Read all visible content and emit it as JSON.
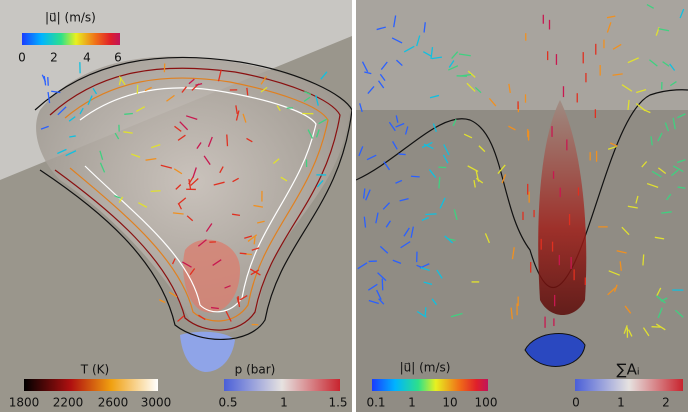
{
  "left_panel": {
    "velocity_colorbar": {
      "title": "|u⃗| (m/s)",
      "ticks": [
        0,
        2,
        4,
        6
      ]
    },
    "temperature_colorbar": {
      "title": "T (K)",
      "ticks": [
        1800,
        2200,
        2600,
        3000
      ]
    },
    "pressure_colorbar": {
      "title": "p (bar)",
      "ticks": [
        0.5,
        1,
        1.5
      ]
    }
  },
  "right_panel": {
    "velocity_colorbar": {
      "title": "|u⃗| (m/s)",
      "ticks": [
        0.1,
        1,
        10,
        100
      ]
    },
    "area_colorbar": {
      "title": "∑Aᵢ",
      "ticks": [
        0,
        1,
        2
      ]
    }
  }
}
